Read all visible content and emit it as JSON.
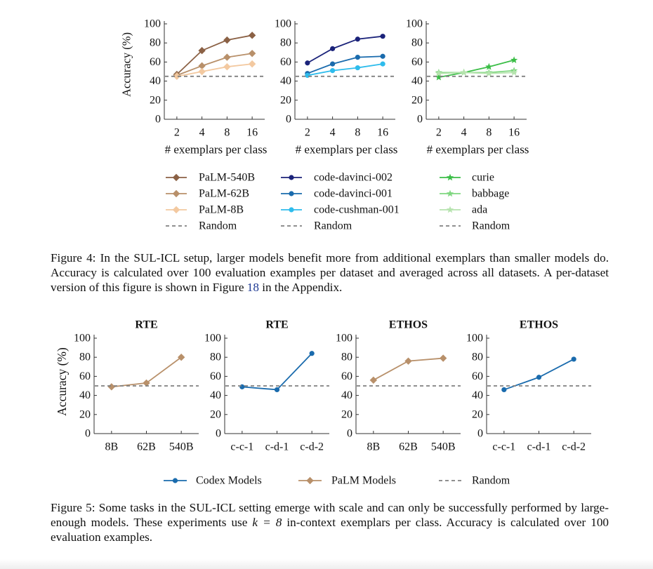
{
  "fig4": {
    "ylabel": "Accuracy (%)",
    "xlabel": "# exemplars per class",
    "yticks": [
      "0",
      "20",
      "40",
      "60",
      "80",
      "100"
    ],
    "xticks": [
      "2",
      "4",
      "8",
      "16"
    ],
    "legend_random": "Random",
    "caption": {
      "before": "Figure 4: In the SUL-ICL setup, larger models benefit more from additional exemplars than smaller models do. Accuracy is calculated over 100 evaluation examples per dataset and averaged across all datasets. A per-dataset version of this figure is shown in Figure ",
      "ref": "18",
      "after": " in the Appendix."
    }
  },
  "fig5": {
    "ylabel": "Accuracy (%)",
    "yticks": [
      "0",
      "20",
      "40",
      "60",
      "80",
      "100"
    ],
    "legend": {
      "codex": "Codex Models",
      "palm": "PaLM Models",
      "random": "Random"
    },
    "caption": {
      "before": "Figure 5: Some tasks in the SUL-ICL setting emerge with scale and can only be successfully performed by large-enough models. These experiments use ",
      "math": "k = 8",
      "after": " in-context exemplars per class. Accuracy is calculated over 100 evaluation examples."
    }
  },
  "colors": {
    "palm540": "#8B6145",
    "palm62": "#B8906A",
    "palm8": "#F3C9A0",
    "davinci002": "#1B237A",
    "davinci001": "#1A6BAD",
    "cushman001": "#2EBCEC",
    "curie": "#3BBE47",
    "babbage": "#7FD780",
    "ada": "#B6E3AE",
    "codex": "#1A6BAD",
    "palm": "#B8906A",
    "random": "#808080"
  },
  "chart_data": [
    {
      "type": "line",
      "title": "",
      "xlabel": "# exemplars per class",
      "ylabel": "Accuracy (%)",
      "x": [
        2,
        4,
        8,
        16
      ],
      "ylim": [
        0,
        100
      ],
      "series": [
        {
          "name": "PaLM-540B",
          "values": [
            47,
            72,
            83,
            88
          ],
          "color": "#8B6145",
          "marker": "diamond"
        },
        {
          "name": "PaLM-62B",
          "values": [
            46,
            56,
            65,
            69
          ],
          "color": "#B8906A",
          "marker": "diamond"
        },
        {
          "name": "PaLM-8B",
          "values": [
            45,
            50,
            55,
            58
          ],
          "color": "#F3C9A0",
          "marker": "diamond"
        },
        {
          "name": "Random",
          "values": [
            45,
            45,
            45,
            45
          ],
          "color": "#808080",
          "dashed": true
        }
      ]
    },
    {
      "type": "line",
      "title": "",
      "xlabel": "# exemplars per class",
      "ylabel": "",
      "x": [
        2,
        4,
        8,
        16
      ],
      "ylim": [
        0,
        100
      ],
      "series": [
        {
          "name": "code-davinci-002",
          "values": [
            59,
            74,
            84,
            87
          ],
          "color": "#1B237A",
          "marker": "circle"
        },
        {
          "name": "code-davinci-001",
          "values": [
            48,
            58,
            65,
            66
          ],
          "color": "#1A6BAD",
          "marker": "circle"
        },
        {
          "name": "code-cushman-001",
          "values": [
            46,
            51,
            54,
            58
          ],
          "color": "#2EBCEC",
          "marker": "circle"
        },
        {
          "name": "Random",
          "values": [
            45,
            45,
            45,
            45
          ],
          "color": "#808080",
          "dashed": true
        }
      ]
    },
    {
      "type": "line",
      "title": "",
      "xlabel": "# exemplars per class",
      "ylabel": "",
      "x": [
        2,
        4,
        8,
        16
      ],
      "ylim": [
        0,
        100
      ],
      "series": [
        {
          "name": "curie",
          "values": [
            44,
            49,
            55,
            62
          ],
          "color": "#3BBE47",
          "marker": "star"
        },
        {
          "name": "babbage",
          "values": [
            49,
            49,
            49,
            51
          ],
          "color": "#7FD780",
          "marker": "star"
        },
        {
          "name": "ada",
          "values": [
            48,
            49,
            48,
            49
          ],
          "color": "#B6E3AE",
          "marker": "star"
        },
        {
          "name": "Random",
          "values": [
            45,
            45,
            45,
            45
          ],
          "color": "#808080",
          "dashed": true
        }
      ]
    },
    {
      "type": "line",
      "title": "RTE",
      "ylabel": "Accuracy (%)",
      "categories": [
        "8B",
        "62B",
        "540B"
      ],
      "ylim": [
        0,
        100
      ],
      "series": [
        {
          "name": "PaLM Models",
          "values": [
            49,
            53,
            80
          ],
          "color": "#B8906A",
          "marker": "diamond"
        },
        {
          "name": "Random",
          "values": [
            50,
            50,
            50
          ],
          "color": "#808080",
          "dashed": true
        }
      ]
    },
    {
      "type": "line",
      "title": "RTE",
      "ylabel": "",
      "categories": [
        "c-c-1",
        "c-d-1",
        "c-d-2"
      ],
      "ylim": [
        0,
        100
      ],
      "series": [
        {
          "name": "Codex Models",
          "values": [
            49,
            46,
            84
          ],
          "color": "#1A6BAD",
          "marker": "circle"
        },
        {
          "name": "Random",
          "values": [
            50,
            50,
            50
          ],
          "color": "#808080",
          "dashed": true
        }
      ]
    },
    {
      "type": "line",
      "title": "ETHOS",
      "ylabel": "",
      "categories": [
        "8B",
        "62B",
        "540B"
      ],
      "ylim": [
        0,
        100
      ],
      "series": [
        {
          "name": "PaLM Models",
          "values": [
            56,
            76,
            79
          ],
          "color": "#B8906A",
          "marker": "diamond"
        },
        {
          "name": "Random",
          "values": [
            50,
            50,
            50
          ],
          "color": "#808080",
          "dashed": true
        }
      ]
    },
    {
      "type": "line",
      "title": "ETHOS",
      "ylabel": "",
      "categories": [
        "c-c-1",
        "c-d-1",
        "c-d-2"
      ],
      "ylim": [
        0,
        100
      ],
      "series": [
        {
          "name": "Codex Models",
          "values": [
            46,
            59,
            78
          ],
          "color": "#1A6BAD",
          "marker": "circle"
        },
        {
          "name": "Random",
          "values": [
            50,
            50,
            50
          ],
          "color": "#808080",
          "dashed": true
        }
      ]
    }
  ]
}
